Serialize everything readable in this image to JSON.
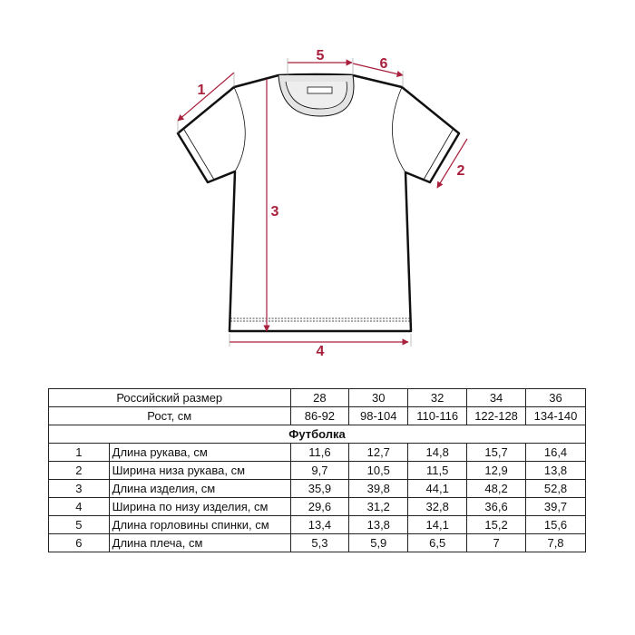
{
  "diagram": {
    "accent_color": "#a8203c",
    "measure_labels": [
      "1",
      "2",
      "3",
      "4",
      "5",
      "6"
    ]
  },
  "table": {
    "size_header": "Российский размер",
    "sizes": [
      "28",
      "30",
      "32",
      "34",
      "36"
    ],
    "height_header": "Рост, см",
    "heights": [
      "86-92",
      "98-104",
      "110-116",
      "122-128",
      "134-140"
    ],
    "section_title": "Футболка",
    "rows": [
      {
        "num": "1",
        "label": "Длина рукава, см",
        "values": [
          "11,6",
          "12,7",
          "14,8",
          "15,7",
          "16,4"
        ]
      },
      {
        "num": "2",
        "label": "Ширина низа рукава, см",
        "values": [
          "9,7",
          "10,5",
          "11,5",
          "12,9",
          "13,8"
        ]
      },
      {
        "num": "3",
        "label": "Длина изделия, см",
        "values": [
          "35,9",
          "39,8",
          "44,1",
          "48,2",
          "52,8"
        ]
      },
      {
        "num": "4",
        "label": "Ширина по низу изделия, см",
        "values": [
          "29,6",
          "31,2",
          "32,8",
          "36,6",
          "39,7"
        ]
      },
      {
        "num": "5",
        "label": "Длина горловины спинки, см",
        "values": [
          "13,4",
          "13,8",
          "14,1",
          "15,2",
          "15,6"
        ]
      },
      {
        "num": "6",
        "label": "Длина плеча, см",
        "values": [
          "5,3",
          "5,9",
          "6,5",
          "7",
          "7,8"
        ]
      }
    ]
  }
}
